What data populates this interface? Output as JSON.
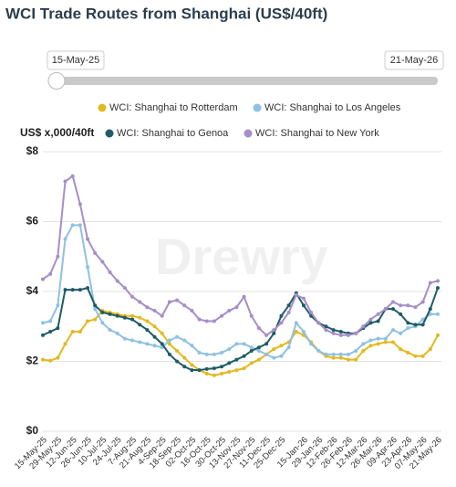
{
  "chart_data": {
    "type": "line",
    "title": "WCI Trade Routes from Shanghai (US$/40ft)",
    "y_axis_label": "US$ x,000/40ft",
    "watermark": "Drewry",
    "range_start": "15-May-25",
    "range_end": "21-May-26",
    "categories": [
      "15-May-25",
      null,
      "29-May-25",
      null,
      "12-Jun-25",
      null,
      "26-Jun-25",
      null,
      "10-Jul-25",
      null,
      "24-Jul-25",
      null,
      "7-Aug-25",
      null,
      "21-Aug-25",
      null,
      "4-Sep-25",
      null,
      "18-Sep-25",
      null,
      "02-Oct-25",
      null,
      "16-Oct-25",
      null,
      "30-Oct-25",
      null,
      "13-Nov-25",
      null,
      "27-Nov-25",
      null,
      "11-Dec-25",
      null,
      "25-Dec-25",
      null,
      null,
      "15-Jan-26",
      null,
      "29-Jan-26",
      null,
      "12-Feb-26",
      null,
      "26-Feb-26",
      null,
      "12-Mar-26",
      null,
      "26-Mar-26",
      null,
      "09-Apr-26",
      null,
      "23-Apr-26",
      null,
      "07-May-26",
      null,
      "21-May-26"
    ],
    "series": [
      {
        "name": "WCI: Shanghai to Rotterdam",
        "color": "#e3b920",
        "values": [
          2.05,
          2.02,
          2.1,
          2.5,
          2.85,
          2.85,
          3.15,
          3.2,
          3.45,
          3.4,
          3.35,
          3.3,
          3.3,
          3.25,
          3.15,
          3.0,
          2.8,
          2.5,
          2.3,
          2.1,
          1.9,
          1.75,
          1.65,
          1.6,
          1.65,
          1.7,
          1.75,
          1.8,
          1.95,
          2.05,
          2.2,
          2.35,
          2.45,
          2.55,
          2.85,
          2.75,
          2.55,
          2.3,
          2.15,
          2.1,
          2.1,
          2.05,
          2.05,
          2.3,
          2.45,
          2.5,
          2.55,
          2.55,
          2.35,
          2.25,
          2.15,
          2.15,
          2.35,
          2.75
        ]
      },
      {
        "name": "WCI: Shanghai to Los Angeles",
        "color": "#8fc1e2",
        "values": [
          3.1,
          3.15,
          3.6,
          5.5,
          5.9,
          5.9,
          4.7,
          3.5,
          3.1,
          2.9,
          2.8,
          2.65,
          2.6,
          2.55,
          2.5,
          2.45,
          2.4,
          2.6,
          2.7,
          2.6,
          2.45,
          2.25,
          2.2,
          2.2,
          2.25,
          2.35,
          2.5,
          2.5,
          2.4,
          2.3,
          2.2,
          2.1,
          2.15,
          2.4,
          3.1,
          2.85,
          2.5,
          2.3,
          2.2,
          2.2,
          2.2,
          2.2,
          2.3,
          2.5,
          2.6,
          2.65,
          2.65,
          2.9,
          2.8,
          2.95,
          3.0,
          3.2,
          3.35,
          3.35
        ]
      },
      {
        "name": "WCI: Shanghai to Genoa",
        "color": "#1f5c66",
        "values": [
          2.75,
          2.85,
          2.95,
          4.05,
          4.05,
          4.05,
          4.1,
          3.6,
          3.4,
          3.35,
          3.3,
          3.25,
          3.2,
          3.05,
          2.9,
          2.7,
          2.5,
          2.2,
          2.0,
          1.85,
          1.75,
          1.75,
          1.78,
          1.8,
          1.85,
          1.95,
          2.05,
          2.15,
          2.3,
          2.4,
          2.5,
          2.8,
          3.3,
          3.6,
          3.95,
          3.6,
          3.3,
          3.1,
          3.0,
          2.9,
          2.85,
          2.8,
          2.8,
          2.95,
          3.1,
          3.15,
          3.5,
          3.5,
          3.35,
          3.1,
          3.05,
          3.05,
          3.5,
          4.1
        ]
      },
      {
        "name": "WCI: Shanghai to New York",
        "color": "#a58ec9",
        "values": [
          4.35,
          4.5,
          5.0,
          7.15,
          7.3,
          6.5,
          5.5,
          5.1,
          4.85,
          4.55,
          4.3,
          4.1,
          3.85,
          3.7,
          3.55,
          3.45,
          3.3,
          3.7,
          3.75,
          3.6,
          3.45,
          3.2,
          3.15,
          3.15,
          3.3,
          3.45,
          3.55,
          3.85,
          3.3,
          2.95,
          2.75,
          2.9,
          3.1,
          3.4,
          3.9,
          3.8,
          3.4,
          3.1,
          2.9,
          2.8,
          2.75,
          2.75,
          2.8,
          3.0,
          3.2,
          3.35,
          3.5,
          3.7,
          3.6,
          3.6,
          3.55,
          3.7,
          4.25,
          4.3
        ]
      }
    ],
    "ylim": [
      0,
      8
    ],
    "yticks": [
      {
        "value": 0,
        "label": "$0"
      },
      {
        "value": 2,
        "label": "$2"
      },
      {
        "value": 4,
        "label": "$4"
      },
      {
        "value": 6,
        "label": "$6"
      },
      {
        "value": 8,
        "label": "$8"
      }
    ],
    "grid": true
  }
}
